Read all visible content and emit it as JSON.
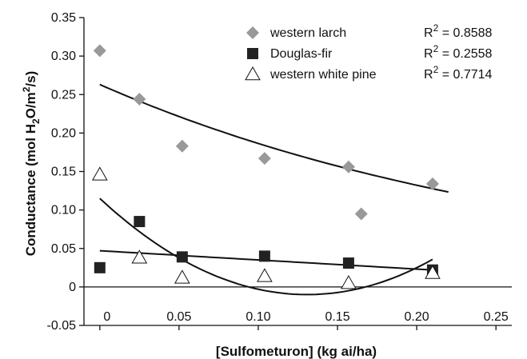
{
  "chart_data": {
    "type": "scatter",
    "xlabel": "[Sulfometuron] (kg ai/ha)",
    "ylabel_parts": {
      "pre": "Conductance (mol H",
      "sub1": "2",
      "mid": "O/m",
      "sup": "2",
      "post": "/s)"
    },
    "xlim": [
      -0.01,
      0.26
    ],
    "ylim": [
      -0.05,
      0.35
    ],
    "xticks": [
      0,
      0.05,
      0.1,
      0.15,
      0.2,
      0.25
    ],
    "xtick_labels": [
      "0",
      "0.05",
      "0.10",
      "0.15",
      "0.20",
      "0.25"
    ],
    "yticks": [
      -0.05,
      0,
      0.05,
      0.1,
      0.15,
      0.2,
      0.25,
      0.3,
      0.35
    ],
    "ytick_labels": [
      "-0.05",
      "0",
      "0.05",
      "0.10",
      "0.15",
      "0.20",
      "0.25",
      "0.30",
      "0.35"
    ],
    "grid": false,
    "legend_position": "top-right",
    "series": [
      {
        "name": "western larch",
        "marker": "diamond",
        "color": "#999999",
        "r2": "R2 = 0.8588",
        "r2_value": "= 0.8588",
        "points": [
          [
            0,
            0.307
          ],
          [
            0.025,
            0.244
          ],
          [
            0.052,
            0.183
          ],
          [
            0.104,
            0.167
          ],
          [
            0.157,
            0.156
          ],
          [
            0.165,
            0.095
          ],
          [
            0.21,
            0.134
          ]
        ],
        "fit": {
          "type": "exponential",
          "a": 0.263,
          "b": -3.44,
          "x_range": [
            0,
            0.22
          ]
        }
      },
      {
        "name": "Douglas-fir",
        "marker": "square",
        "color": "#222222",
        "r2": "R2 = 0.2558",
        "r2_value": "= 0.2558",
        "points": [
          [
            0,
            0.025
          ],
          [
            0.025,
            0.085
          ],
          [
            0.052,
            0.039
          ],
          [
            0.104,
            0.04
          ],
          [
            0.157,
            0.031
          ],
          [
            0.21,
            0.022
          ]
        ],
        "fit": {
          "type": "linear",
          "a": 0.047,
          "b": -0.119,
          "x_range": [
            0,
            0.21
          ]
        }
      },
      {
        "name": "western white pine",
        "marker": "triangle",
        "color": "#ffffff",
        "r2": "R2 = 0.7714",
        "r2_value": "= 0.7714",
        "points": [
          [
            0,
            0.146
          ],
          [
            0.025,
            0.038
          ],
          [
            0.052,
            0.012
          ],
          [
            0.104,
            0.014
          ],
          [
            0.157,
            0.005
          ],
          [
            0.21,
            0.018
          ]
        ],
        "fit": {
          "type": "quadratic",
          "a": 0.115,
          "b": -1.91,
          "c": 7.3,
          "x_range": [
            0,
            0.21
          ]
        }
      }
    ]
  }
}
